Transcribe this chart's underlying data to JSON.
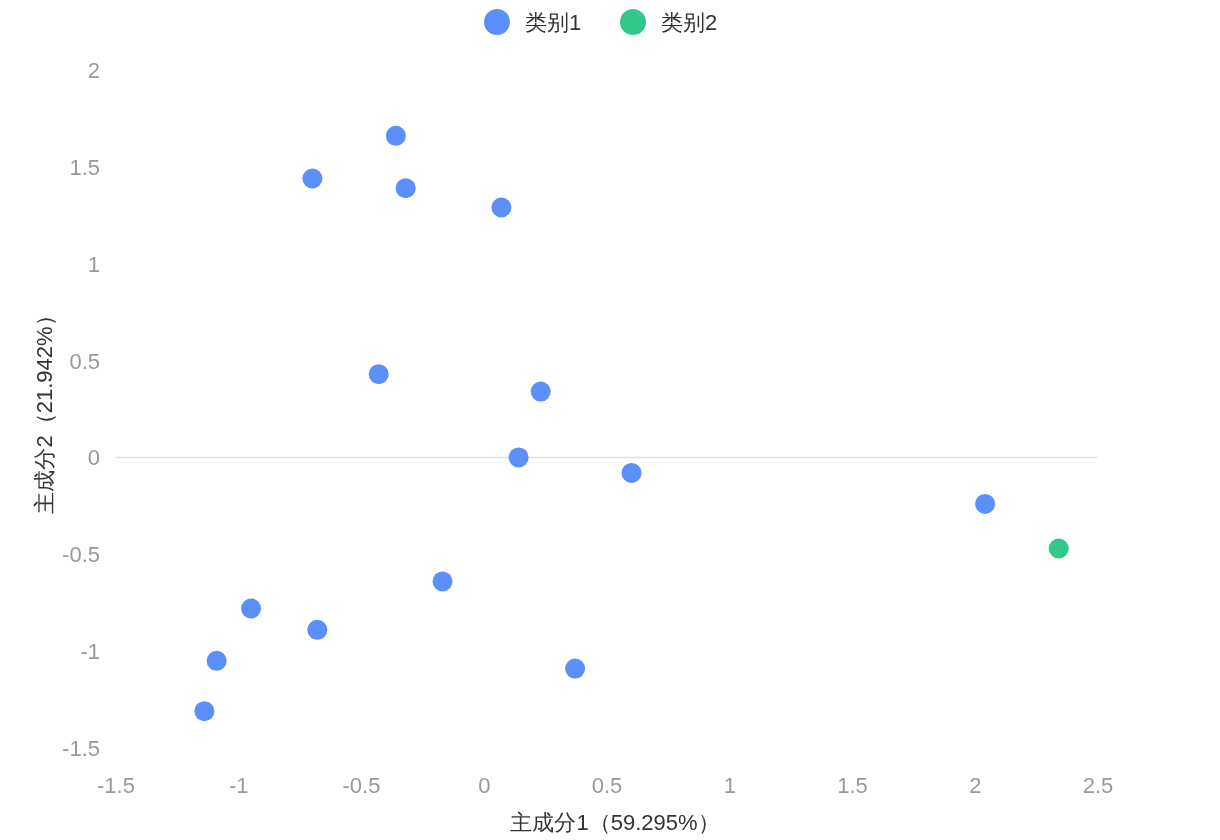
{
  "chart_data": {
    "type": "scatter",
    "xlabel": "主成分1（59.295%）",
    "ylabel": "主成分2（21.942%）",
    "xlim": [
      -1.5,
      2.5
    ],
    "xticks": [
      -1.5,
      -1,
      -0.5,
      0,
      0.5,
      1,
      1.5,
      2,
      2.5
    ],
    "ylim": [
      -1.5,
      2
    ],
    "yticks": [
      -1.5,
      -1,
      -0.5,
      0,
      0.5,
      1,
      1.5,
      2
    ],
    "legend": "top",
    "marker": "circle",
    "series": [
      {
        "name": "类别1",
        "color": "#5b8ff9",
        "x": [
          -0.36,
          -0.7,
          -0.32,
          0.07,
          -0.43,
          0.23,
          0.14,
          0.6,
          2.04,
          -0.17,
          -0.95,
          -0.68,
          -1.09,
          0.37,
          -1.14
        ],
        "values": [
          1.66,
          1.44,
          1.39,
          1.29,
          0.43,
          0.34,
          0.0,
          -0.08,
          -0.24,
          -0.64,
          -0.78,
          -0.89,
          -1.05,
          -1.09,
          -1.31
        ]
      },
      {
        "name": "类别2",
        "color": "#30c98a",
        "x": [
          2.34
        ],
        "values": [
          -0.47
        ]
      }
    ]
  }
}
